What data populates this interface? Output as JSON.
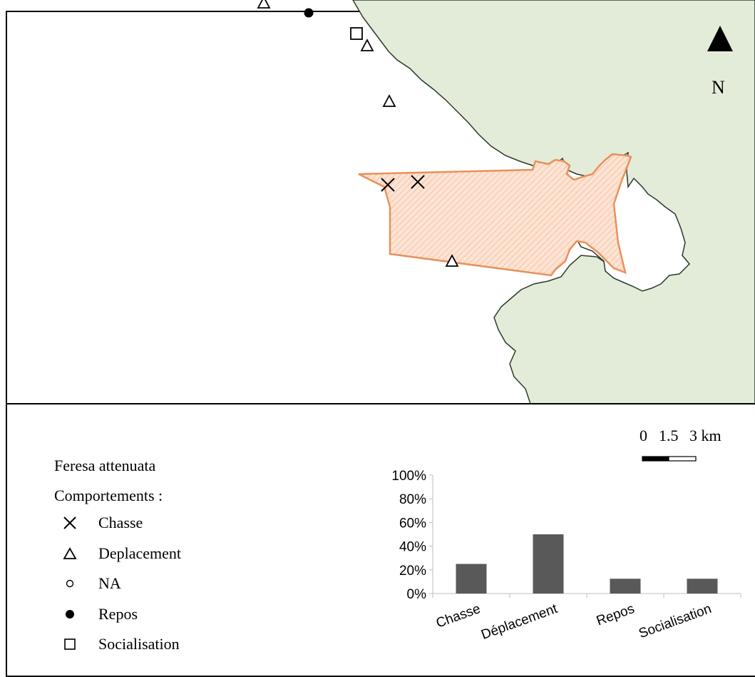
{
  "map": {
    "north_label": "N",
    "scale": {
      "labels": [
        "0",
        "1.5",
        "3 km"
      ]
    },
    "colors": {
      "land": "#e3ecd9",
      "coast": "#2b3a2b",
      "zone_stroke": "#e8915a",
      "zone_fill": "#fcdcc9"
    },
    "markers": [
      {
        "type": "Deplacement"
      },
      {
        "type": "Repos"
      },
      {
        "type": "Socialisation"
      },
      {
        "type": "Deplacement"
      },
      {
        "type": "Deplacement"
      },
      {
        "type": "Chasse"
      },
      {
        "type": "Chasse"
      },
      {
        "type": "Deplacement"
      }
    ]
  },
  "legend": {
    "title": "Feresa attenuata",
    "subtitle": "Comportements :",
    "items": [
      {
        "icon": "cross-icon",
        "label": "Chasse"
      },
      {
        "icon": "triangle-icon",
        "label": "Deplacement"
      },
      {
        "icon": "open-circle-icon",
        "label": "NA"
      },
      {
        "icon": "filled-circle-icon",
        "label": "Repos"
      },
      {
        "icon": "square-icon",
        "label": "Socialisation"
      }
    ]
  },
  "chart_data": {
    "type": "bar",
    "categories": [
      "Chasse",
      "Déplacement",
      "Repos",
      "Socialisation"
    ],
    "values": [
      25,
      50,
      12.5,
      12.5
    ],
    "ylim": [
      0,
      100
    ],
    "yticks": [
      "0%",
      "20%",
      "40%",
      "60%",
      "80%",
      "100%"
    ],
    "bar_color": "#595959",
    "title": "",
    "xlabel": "",
    "ylabel": ""
  }
}
